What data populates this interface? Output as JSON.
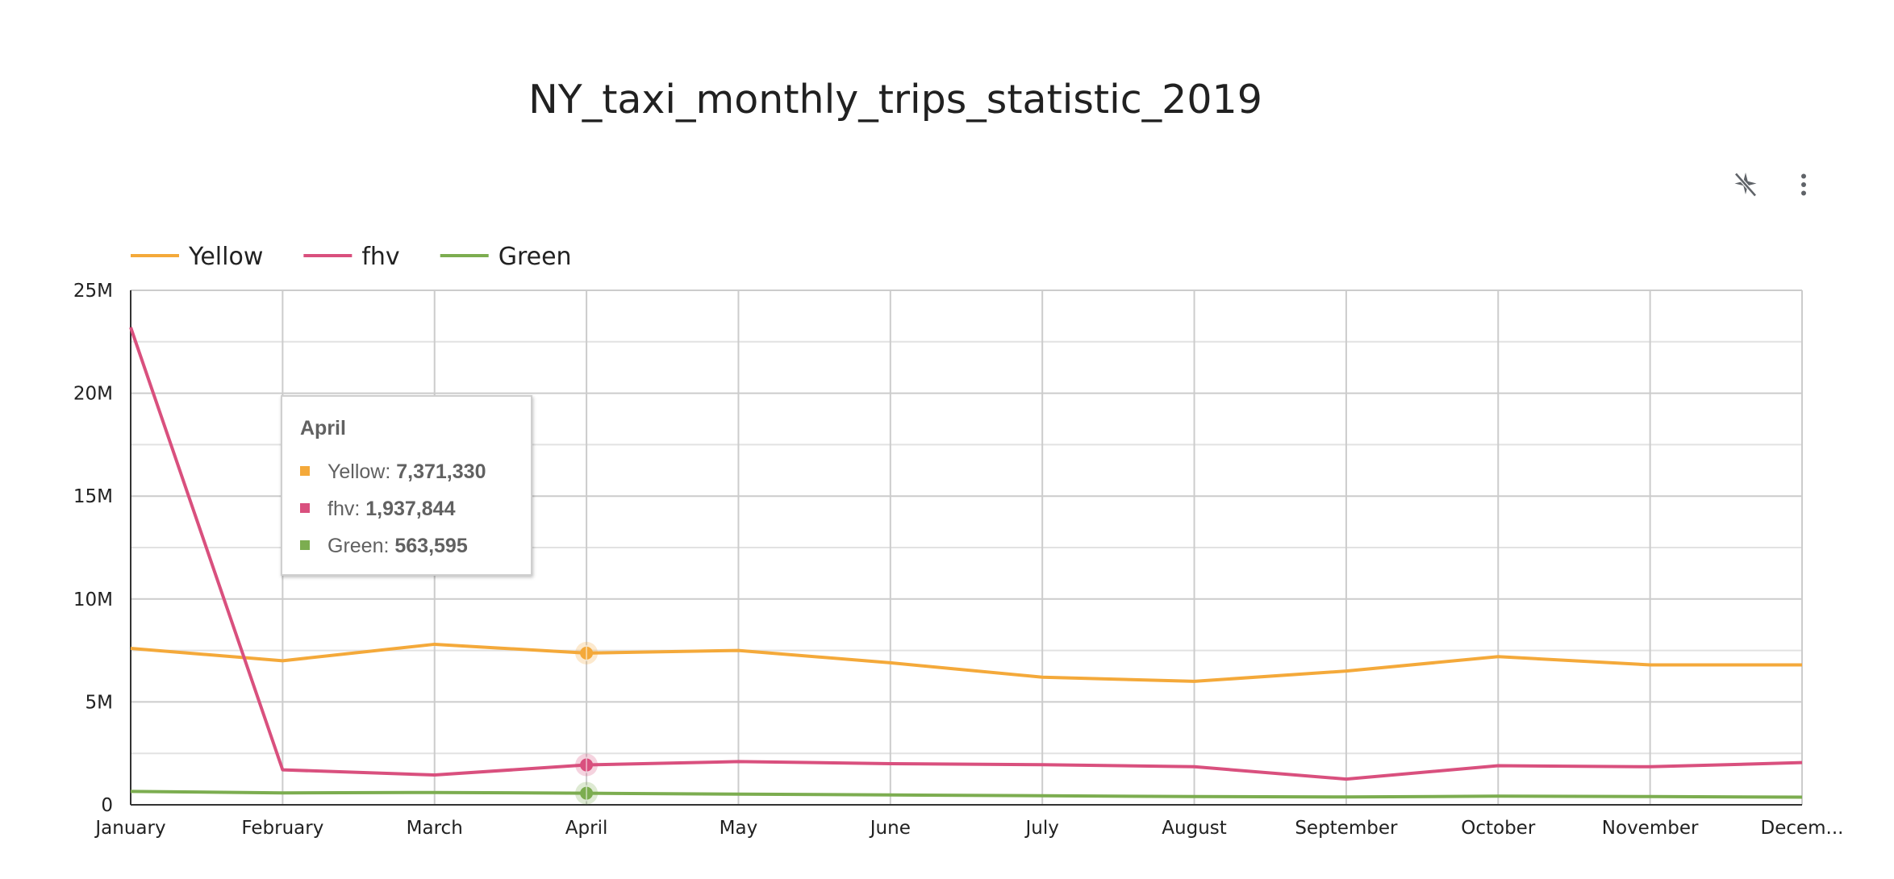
{
  "chart_data": {
    "type": "line",
    "title": "NY_taxi_monthly_trips_statistic_2019",
    "xlabel": "",
    "ylabel": "",
    "categories": [
      "January",
      "February",
      "March",
      "April",
      "May",
      "June",
      "July",
      "August",
      "September",
      "October",
      "November",
      "Decem..."
    ],
    "series": [
      {
        "name": "Yellow",
        "color": "#f4a93a",
        "values": [
          7600000,
          7000000,
          7800000,
          7371330,
          7500000,
          6900000,
          6200000,
          6000000,
          6500000,
          7200000,
          6800000,
          6800000
        ]
      },
      {
        "name": "fhv",
        "color": "#d9507e",
        "values": [
          23200000,
          1700000,
          1450000,
          1937844,
          2100000,
          2000000,
          1950000,
          1850000,
          1250000,
          1900000,
          1850000,
          2050000
        ]
      },
      {
        "name": "Green",
        "color": "#7cad50",
        "values": [
          650000,
          580000,
          600000,
          563595,
          520000,
          480000,
          440000,
          400000,
          380000,
          420000,
          400000,
          370000
        ]
      }
    ],
    "ylim": [
      0,
      25000000
    ],
    "y_ticks": [
      {
        "value": 0,
        "label": "0"
      },
      {
        "value": 5000000,
        "label": "5M"
      },
      {
        "value": 10000000,
        "label": "10M"
      },
      {
        "value": 15000000,
        "label": "15M"
      },
      {
        "value": 20000000,
        "label": "20M"
      },
      {
        "value": 25000000,
        "label": "25M"
      }
    ],
    "grid": true,
    "legend_position": "top-left"
  },
  "tooltip": {
    "title": "April",
    "rows": [
      {
        "label": "Yellow: ",
        "value": "7,371,330",
        "color": "#f4a93a"
      },
      {
        "label": "fhv: ",
        "value": "1,937,844",
        "color": "#d9507e"
      },
      {
        "label": "Green: ",
        "value": "563,595",
        "color": "#7cad50"
      }
    ]
  },
  "toolbar": {
    "icons": [
      "sparkle-off-icon",
      "more-vert-icon"
    ]
  }
}
